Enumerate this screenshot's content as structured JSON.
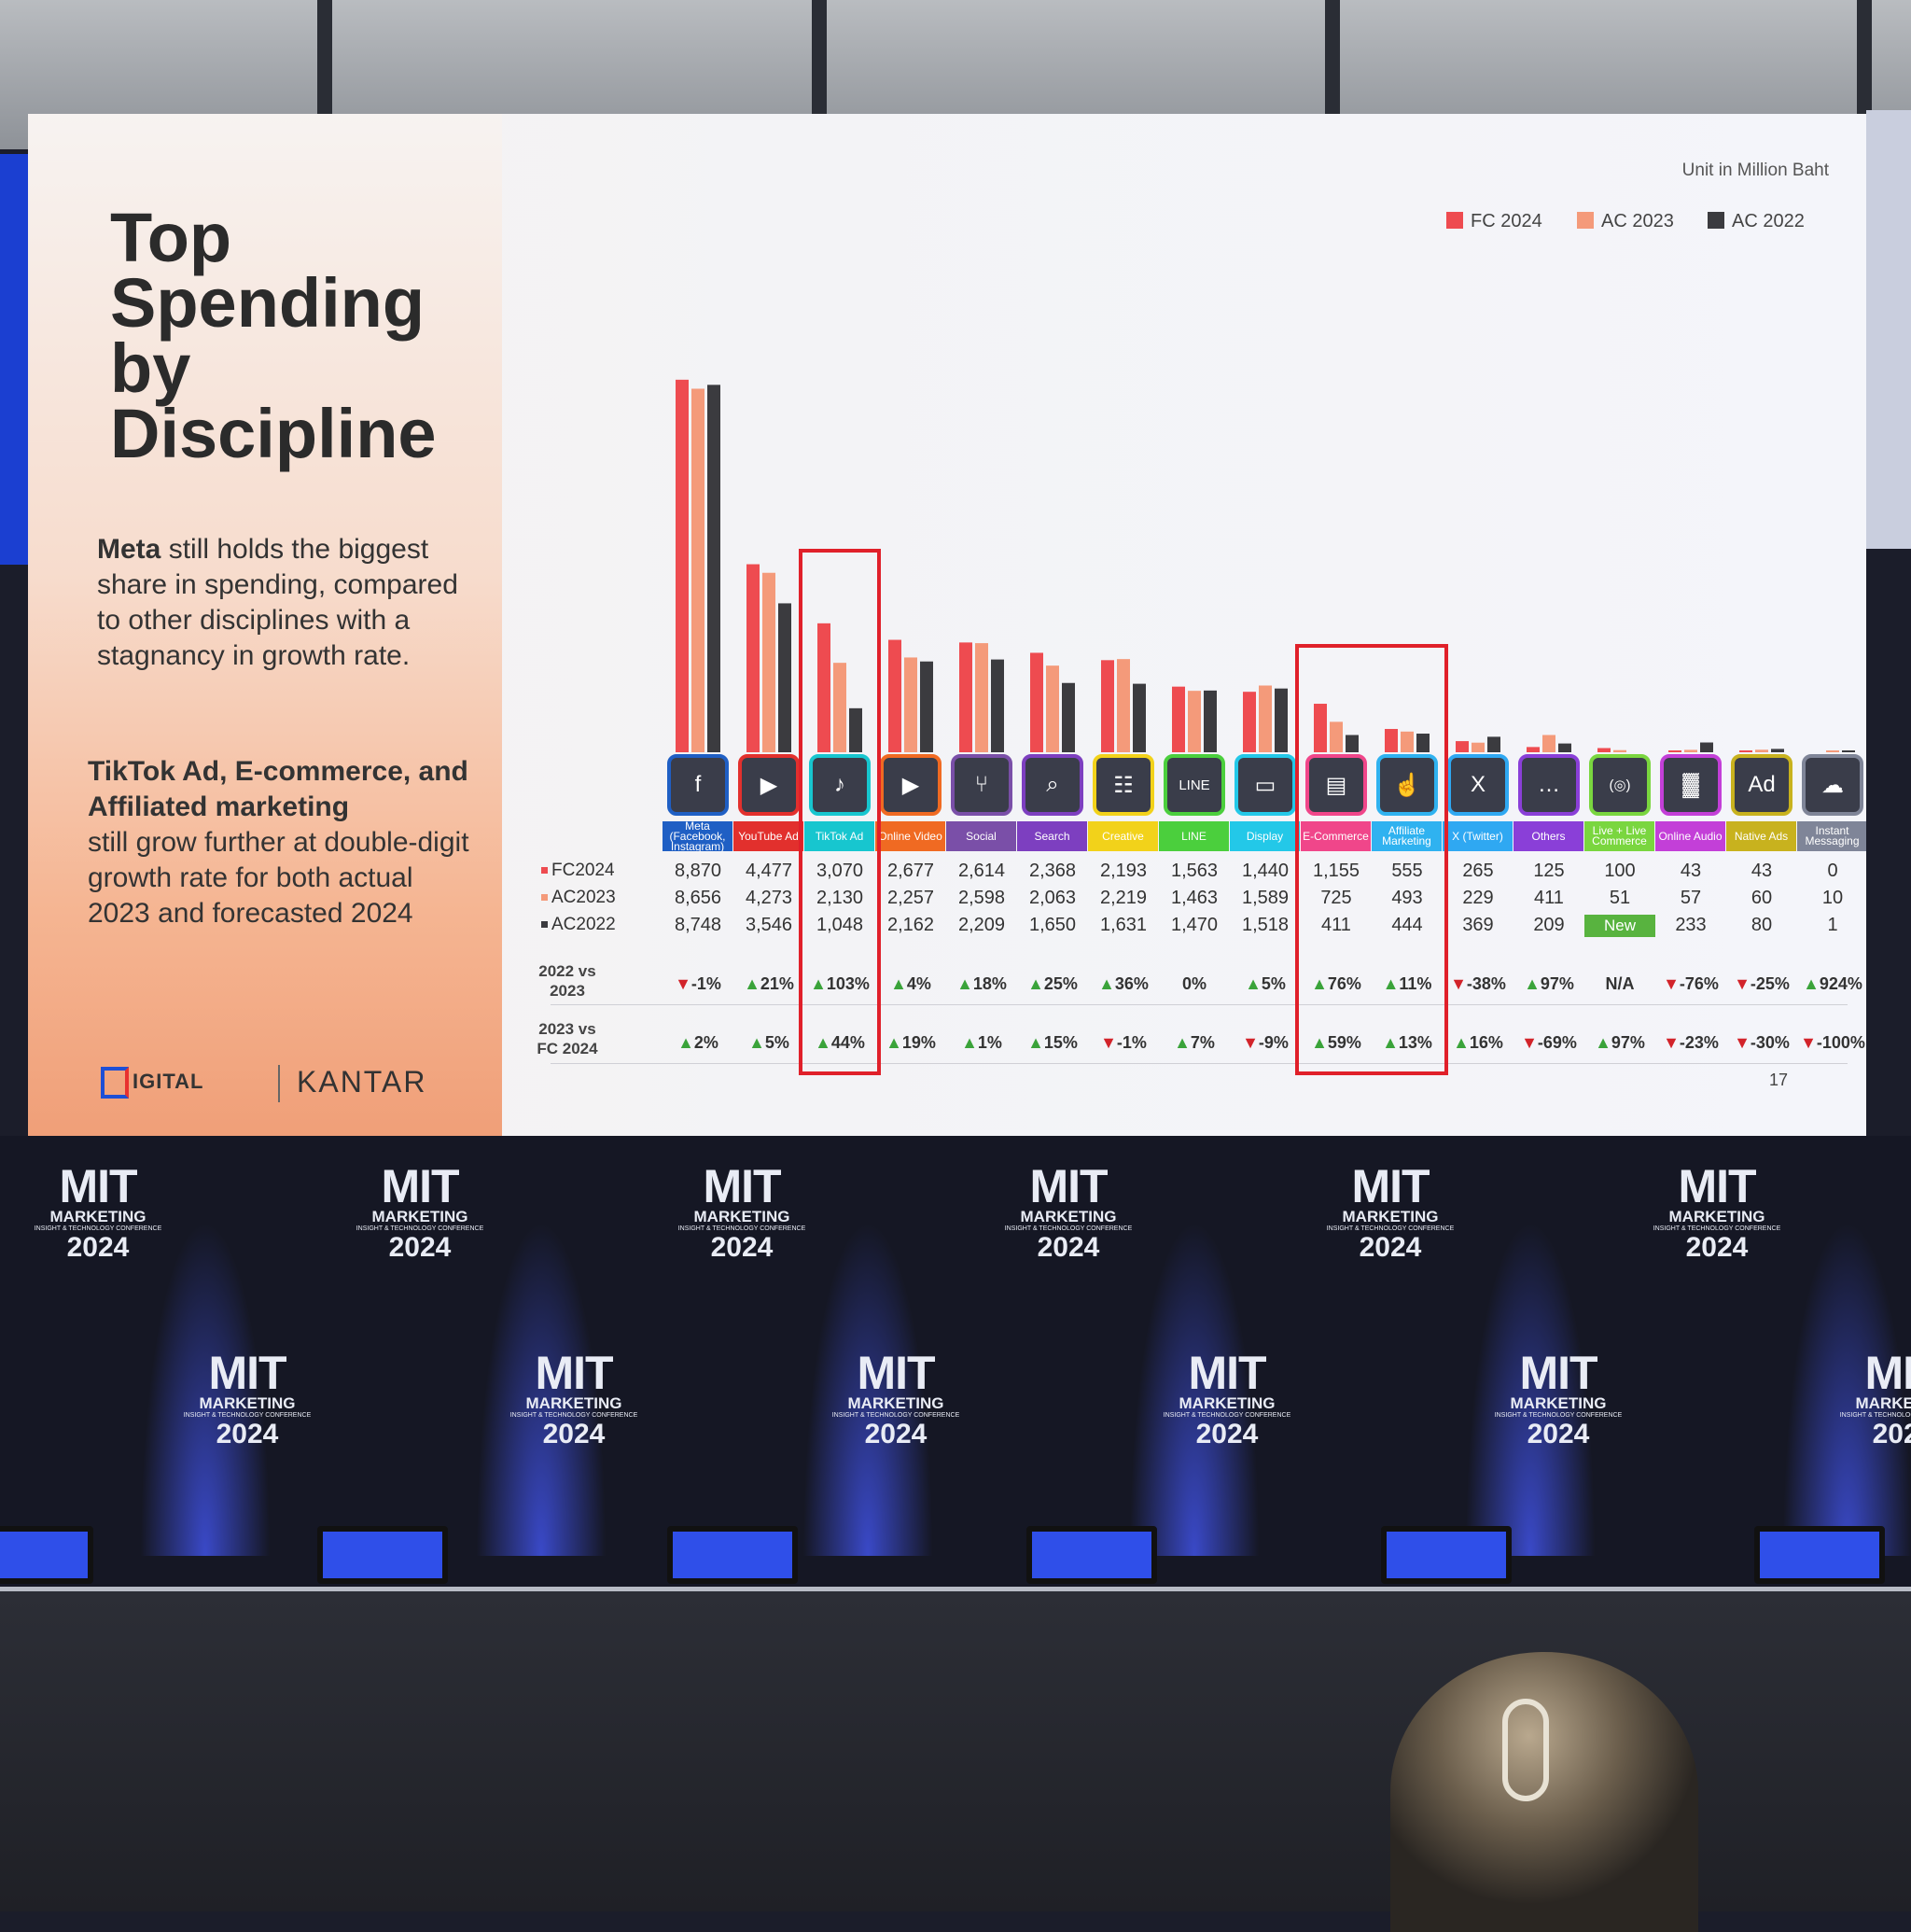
{
  "slide": {
    "title_lines": [
      "Top",
      "Spending",
      "by",
      "Discipline"
    ],
    "desc1_bold": "Meta",
    "desc1_rest": " still holds the biggest share in spending, compared to other disciplines with a stagnancy in growth rate.",
    "desc2_bold": "TikTok Ad, E-commerce, and Affiliated marketing",
    "desc2_rest": "still grow further at double-digit growth rate for both actual 2023 and forecasted 2024",
    "logo_left": "IGITAL",
    "logo_right": "KANTAR",
    "unit_note": "Unit in Million Baht",
    "page_number": "17"
  },
  "colors": {
    "fc2024": "#ee4b50",
    "ac2023": "#f49a7a",
    "ac2022": "#3b3b3f",
    "highlight": "#e0202a"
  },
  "chart_data": {
    "type": "bar",
    "title": "Top Spending by Discipline",
    "unit": "Unit in Million Baht",
    "legend": [
      {
        "name": "FC 2024",
        "color": "#ee4b50"
      },
      {
        "name": "AC 2023",
        "color": "#f49a7a"
      },
      {
        "name": "AC 2022",
        "color": "#3b3b3f"
      }
    ],
    "categories": [
      "Meta (Facebook, Instagram)",
      "YouTube Ad",
      "TikTok Ad",
      "Online Video",
      "Social",
      "Search",
      "Creative",
      "LINE",
      "Display",
      "E-Commerce",
      "Affiliate Marketing",
      "X (Twitter)",
      "Others",
      "Live + Live Commerce",
      "Online Audio",
      "Native Ads",
      "Instant Messaging"
    ],
    "category_colors": [
      "#1f5fc4",
      "#e2302d",
      "#17c6cf",
      "#f06a22",
      "#7a4fa8",
      "#7d3fc0",
      "#f2d21a",
      "#4bcf3d",
      "#23c8e8",
      "#f0468a",
      "#2fb2f0",
      "#2fa8f2",
      "#8a3fd8",
      "#7ad63f",
      "#c33fd8",
      "#c8b21e",
      "#7f8598"
    ],
    "icons": [
      "f",
      "▶",
      "♪",
      "▶",
      "⑂",
      "⌕",
      "☷",
      "LINE",
      "▭",
      "▤",
      "☝",
      "X",
      "…",
      "(◎)",
      "▓",
      "Ad",
      "☁"
    ],
    "series": [
      {
        "name": "FC2024",
        "values": [
          8870,
          4477,
          3070,
          2677,
          2614,
          2368,
          2193,
          1563,
          1440,
          1155,
          555,
          265,
          125,
          100,
          43,
          43,
          0
        ]
      },
      {
        "name": "AC2023",
        "values": [
          8656,
          4273,
          2130,
          2257,
          2598,
          2063,
          2219,
          1463,
          1589,
          725,
          493,
          229,
          411,
          51,
          57,
          60,
          10
        ]
      },
      {
        "name": "AC2022",
        "values": [
          8748,
          3546,
          1048,
          2162,
          2209,
          1650,
          1631,
          1470,
          1518,
          411,
          444,
          369,
          209,
          0,
          233,
          80,
          1
        ]
      }
    ],
    "table": {
      "row_labels": [
        "FC2024",
        "AC2023",
        "AC2022"
      ],
      "rows": [
        [
          "8,870",
          "4,477",
          "3,070",
          "2,677",
          "2,614",
          "2,368",
          "2,193",
          "1,563",
          "1,440",
          "1,155",
          "555",
          "265",
          "125",
          "100",
          "43",
          "43",
          "0"
        ],
        [
          "8,656",
          "4,273",
          "2,130",
          "2,257",
          "2,598",
          "2,063",
          "2,219",
          "1,463",
          "1,589",
          "725",
          "493",
          "229",
          "411",
          "51",
          "57",
          "60",
          "10"
        ],
        [
          "8,748",
          "3,546",
          "1,048",
          "2,162",
          "2,209",
          "1,650",
          "1,631",
          "1,470",
          "1,518",
          "411",
          "444",
          "369",
          "209",
          "New",
          "233",
          "80",
          "1"
        ]
      ]
    },
    "growth_2022_vs_2023": {
      "label": [
        "2022 vs",
        "2023"
      ],
      "values": [
        "-1%",
        "21%",
        "103%",
        "4%",
        "18%",
        "25%",
        "36%",
        "0%",
        "5%",
        "76%",
        "11%",
        "-38%",
        "97%",
        "N/A",
        "-76%",
        "-25%",
        "924%"
      ]
    },
    "growth_2023_vs_fc2024": {
      "label": [
        "2023 vs",
        "FC 2024"
      ],
      "values": [
        "2%",
        "5%",
        "44%",
        "19%",
        "1%",
        "15%",
        "-1%",
        "7%",
        "-9%",
        "59%",
        "13%",
        "16%",
        "-69%",
        "97%",
        "-23%",
        "-30%",
        "-100%"
      ]
    },
    "highlighted_categories": [
      "TikTok Ad",
      "E-Commerce",
      "Affiliate Marketing"
    ]
  },
  "stage": {
    "logo_line1": "MIT",
    "logo_line2": "MARKETING",
    "logo_line3": "INSIGHT & TECHNOLOGY CONFERENCE",
    "logo_line4": "2024"
  }
}
